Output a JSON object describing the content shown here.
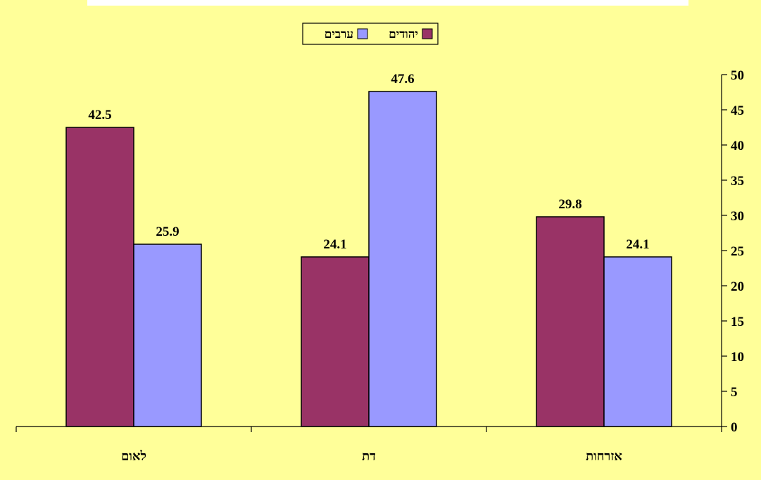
{
  "chart_data": {
    "type": "bar",
    "categories": [
      "לאום",
      "דת",
      "אזרחות"
    ],
    "series": [
      {
        "name": "יהודים",
        "values": [
          42.5,
          24.1,
          29.8
        ],
        "color": "#993366"
      },
      {
        "name": "ערבים",
        "values": [
          25.9,
          47.6,
          24.1
        ],
        "color": "#9999FF"
      }
    ],
    "data_labels": [
      [
        "42.5",
        "24.1",
        "29.8"
      ],
      [
        "25.9",
        "47.6",
        "24.1"
      ]
    ],
    "title": "",
    "xlabel": "",
    "ylabel": "",
    "ylim": [
      0,
      50
    ],
    "ytick_step": 5,
    "y_axis_side": "right",
    "legend_position": "top-center",
    "grid": false,
    "background_color": "#FFFF99",
    "title_box_color": "#FFFFFF"
  }
}
